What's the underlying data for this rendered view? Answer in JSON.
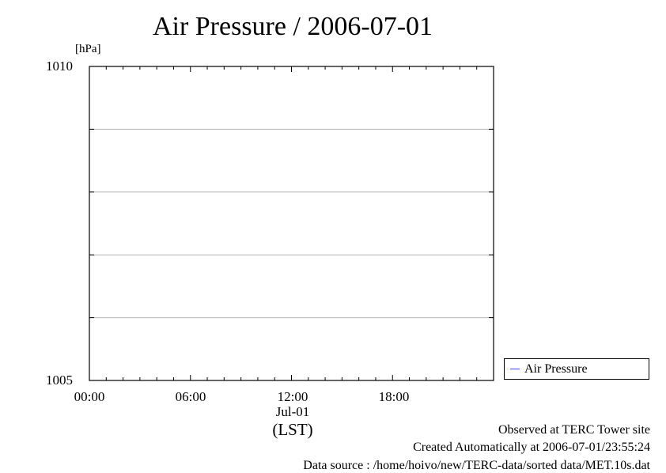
{
  "chart_data": {
    "type": "line",
    "title": "Air Pressure / 2006-07-01",
    "ylabel": "[hPa]",
    "ylim": [
      1005,
      1010
    ],
    "yticks": [
      "1010",
      "1005"
    ],
    "x_tick_labels": [
      "00:00",
      "06:00",
      "12:00",
      "18:00"
    ],
    "x_tick_hours": [
      0,
      6,
      12,
      18
    ],
    "xlim_hours": [
      0,
      24
    ],
    "date_label": "Jul-01",
    "timezone_label": "(LST)",
    "grid": true,
    "legend_position": "bottom-right, outside plot",
    "series": [
      {
        "name": "Air Pressure",
        "color": "#3f3fff",
        "x": [],
        "y": []
      }
    ]
  },
  "footer": {
    "observed": "Observed at TERC Tower site",
    "created": "Created Automatically at 2006-07-01/23:55:24",
    "source": "Data source : /home/hoivo/new/TERC-data/sorted data/MET.10s.dat"
  }
}
